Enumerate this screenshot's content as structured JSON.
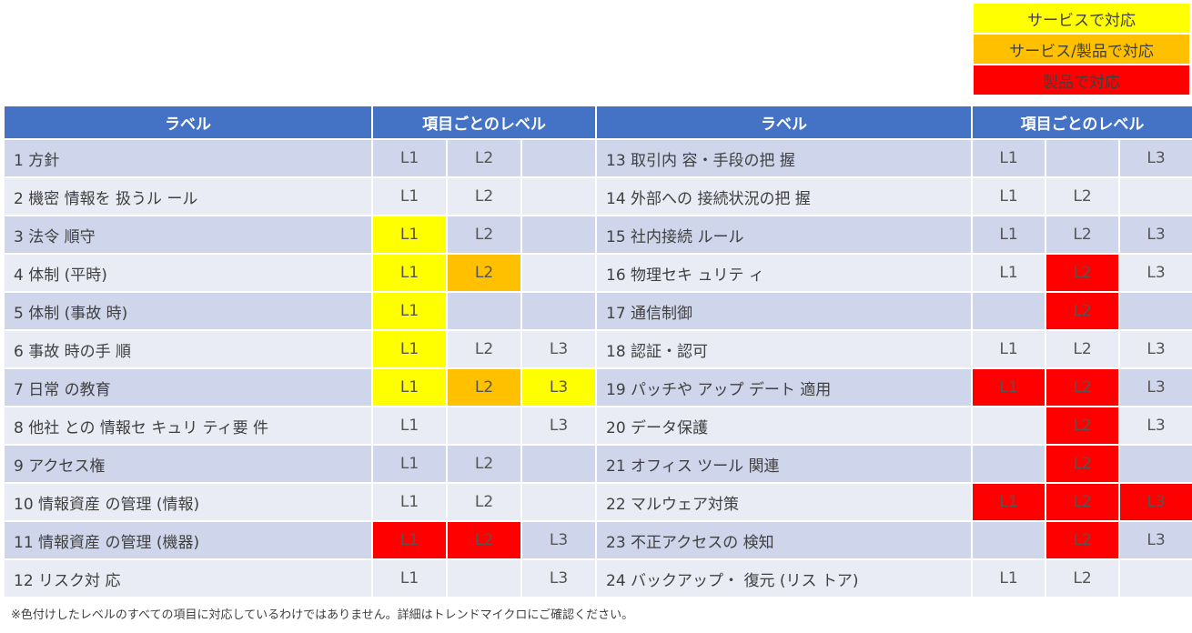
{
  "legend": [
    {
      "label": "サービスで対応",
      "color": "#ffff00"
    },
    {
      "label": "サービス/製品で対応",
      "color": "#ffc000"
    },
    {
      "label": "製品で対応",
      "color": "#ff0000"
    }
  ],
  "header": {
    "label": "ラベル",
    "levels": "項目ごとのレベル"
  },
  "left": [
    {
      "label": "1 方針",
      "l": [
        [
          "L1",
          ""
        ],
        [
          "L2",
          ""
        ],
        [
          "",
          ""
        ]
      ]
    },
    {
      "label": "2 機密 情報を 扱うル ール",
      "l": [
        [
          "L1",
          ""
        ],
        [
          "L2",
          ""
        ],
        [
          "",
          ""
        ]
      ]
    },
    {
      "label": "3 法令 順守",
      "l": [
        [
          "L1",
          "y"
        ],
        [
          "L2",
          ""
        ],
        [
          "",
          ""
        ]
      ]
    },
    {
      "label": "4 体制 (平時)",
      "l": [
        [
          "L1",
          "y"
        ],
        [
          "L2",
          "o"
        ],
        [
          "",
          ""
        ]
      ]
    },
    {
      "label": "5 体制 (事故 時)",
      "l": [
        [
          "L1",
          "y"
        ],
        [
          "",
          ""
        ],
        [
          "",
          ""
        ]
      ]
    },
    {
      "label": "6 事故 時の手 順",
      "l": [
        [
          "L1",
          "y"
        ],
        [
          "L2",
          ""
        ],
        [
          "L3",
          ""
        ]
      ]
    },
    {
      "label": "7 日常 の教育",
      "l": [
        [
          "L1",
          "y"
        ],
        [
          "L2",
          "o"
        ],
        [
          "L3",
          "y"
        ]
      ]
    },
    {
      "label": "8 他社 との 情報セ キュリ ティ要 件",
      "l": [
        [
          "L1",
          ""
        ],
        [
          "",
          ""
        ],
        [
          "L3",
          ""
        ]
      ]
    },
    {
      "label": "9 アクセス権",
      "l": [
        [
          "L1",
          ""
        ],
        [
          "L2",
          ""
        ],
        [
          "",
          ""
        ]
      ]
    },
    {
      "label": "10 情報資産 の管理 (情報)",
      "l": [
        [
          "L1",
          ""
        ],
        [
          "L2",
          ""
        ],
        [
          "",
          ""
        ]
      ]
    },
    {
      "label": "11 情報資産 の管理 (機器)",
      "l": [
        [
          "L1",
          "r"
        ],
        [
          "L2",
          "r"
        ],
        [
          "L3",
          ""
        ]
      ]
    },
    {
      "label": "12 リスク対 応",
      "l": [
        [
          "L1",
          ""
        ],
        [
          "",
          ""
        ],
        [
          "L3",
          ""
        ]
      ]
    }
  ],
  "right": [
    {
      "label": "13 取引内 容・手段の把 握",
      "l": [
        [
          "L1",
          ""
        ],
        [
          "",
          ""
        ],
        [
          "L3",
          ""
        ]
      ]
    },
    {
      "label": "14 外部への 接続状況の把 握",
      "l": [
        [
          "L1",
          ""
        ],
        [
          "L2",
          ""
        ],
        [
          "",
          ""
        ]
      ]
    },
    {
      "label": "15 社内接続 ルール",
      "l": [
        [
          "L1",
          ""
        ],
        [
          "L2",
          ""
        ],
        [
          "L3",
          ""
        ]
      ]
    },
    {
      "label": "16 物理セキ ュリテ ィ",
      "l": [
        [
          "L1",
          ""
        ],
        [
          "L2",
          "r"
        ],
        [
          "L3",
          ""
        ]
      ]
    },
    {
      "label": "17 通信制御",
      "l": [
        [
          "",
          ""
        ],
        [
          "L2",
          "r"
        ],
        [
          "",
          ""
        ]
      ]
    },
    {
      "label": "18 認証・認可",
      "l": [
        [
          "L1",
          ""
        ],
        [
          "L2",
          ""
        ],
        [
          "L3",
          ""
        ]
      ]
    },
    {
      "label": "19 パッチや アップ デート 適用",
      "l": [
        [
          "L1",
          "r"
        ],
        [
          "L2",
          "r"
        ],
        [
          "L3",
          ""
        ]
      ]
    },
    {
      "label": "20 データ保護",
      "l": [
        [
          "",
          ""
        ],
        [
          "L2",
          "r"
        ],
        [
          "L3",
          ""
        ]
      ]
    },
    {
      "label": "21 オフィス ツール 関連",
      "l": [
        [
          "",
          ""
        ],
        [
          "L2",
          "r"
        ],
        [
          "",
          ""
        ]
      ]
    },
    {
      "label": "22 マルウェア対策",
      "l": [
        [
          "L1",
          "r"
        ],
        [
          "L2",
          "r"
        ],
        [
          "L3",
          "r"
        ]
      ]
    },
    {
      "label": "23 不正アクセスの 検知",
      "l": [
        [
          "",
          ""
        ],
        [
          "L2",
          "r"
        ],
        [
          "L3",
          ""
        ]
      ]
    },
    {
      "label": "24 バックアップ・ 復元 (リス トア)",
      "l": [
        [
          "L1",
          ""
        ],
        [
          "L2",
          ""
        ],
        [
          "",
          ""
        ]
      ]
    }
  ],
  "note": "※色付けしたレベルのすべての項目に対応しているわけではありません。詳細はトレンドマイクロにご確認ください。"
}
